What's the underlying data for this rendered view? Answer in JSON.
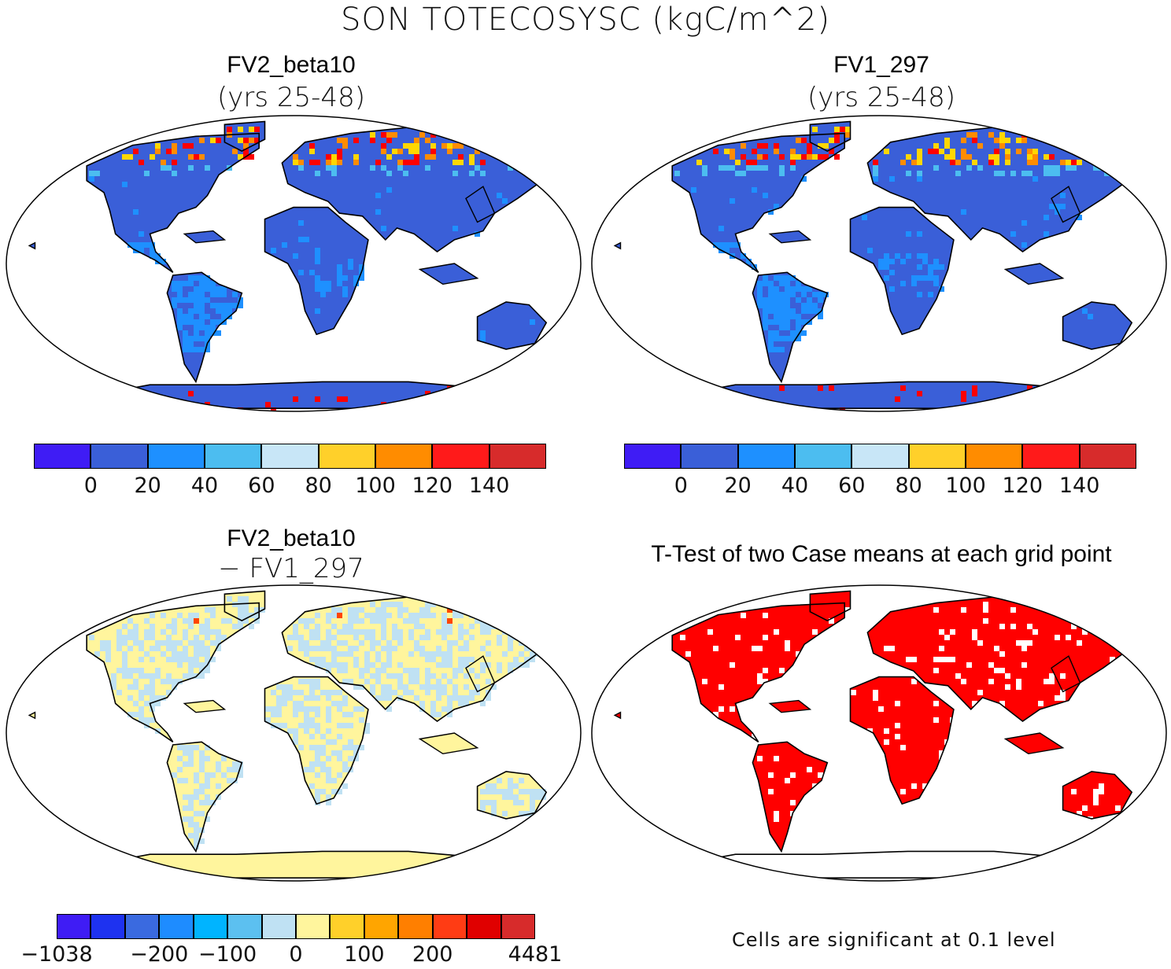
{
  "title": "SON TOTECOSYSC (kgC/m^2)",
  "panels": [
    {
      "title": "FV2_beta10",
      "subtitle": "(yrs 25-48)",
      "land_color": "#3a5fd8",
      "accent_color": "#1e90ff",
      "extreme_colors": [
        "#ff0000",
        "#ff8c00",
        "#ffd700"
      ]
    },
    {
      "title": "FV1_297",
      "subtitle": "(yrs 25-48)",
      "land_color": "#3a5fd8",
      "accent_color": "#1e90ff",
      "extreme_colors": [
        "#ff0000",
        "#ff8c00",
        "#ffd700"
      ]
    },
    {
      "title": "FV2_beta10",
      "subtitle": "− FV1_297",
      "land_color": "#fff59d",
      "accent_color": "#bfe1f3",
      "extreme_colors": [
        "#ff4500",
        "#ff8c00"
      ]
    },
    {
      "title": "T-Test of two Case means at each grid point",
      "subtitle": "",
      "land_color": "#ff0000",
      "accent_color": "#ffffff",
      "extreme_colors": []
    }
  ],
  "colorbars": {
    "absolute": {
      "colors": [
        "#3f1cf5",
        "#3a5fd8",
        "#1e90ff",
        "#4cbdf0",
        "#c8e6f7",
        "#ffd02a",
        "#ff8c00",
        "#ff1a1a",
        "#d72b2b"
      ],
      "labels": [
        "0",
        "20",
        "40",
        "60",
        "80",
        "100",
        "120",
        "140"
      ]
    },
    "difference": {
      "colors": [
        "#3f1cf5",
        "#1e32f0",
        "#3a6ae0",
        "#1e8cff",
        "#00b4ff",
        "#5cc0f0",
        "#bfe1f3",
        "#fff59d",
        "#ffd02a",
        "#ffa500",
        "#ff7f00",
        "#ff3c14",
        "#e00000",
        "#d72b2b"
      ],
      "labels": [
        "−1038",
        "−200",
        "−100",
        "0",
        "100",
        "200",
        "4481"
      ],
      "label_slots": [
        0,
        3,
        5,
        7,
        9,
        11,
        14
      ]
    }
  },
  "footnote": "Cells are significant at 0.1 level"
}
